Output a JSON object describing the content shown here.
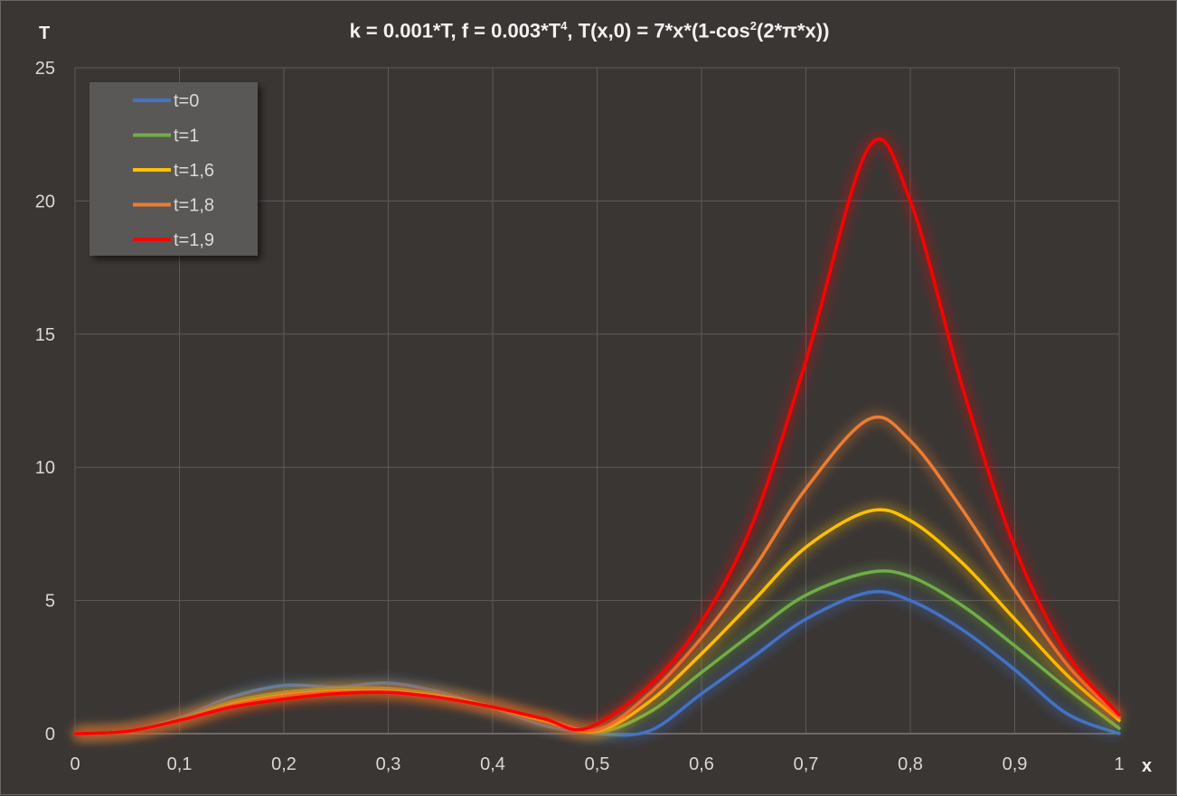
{
  "chart_data": {
    "type": "line",
    "title_parts": [
      "k = 0.001*T, f = 0.003*T",
      "4",
      ",  T(x,0) = 7*x*(1-cos",
      "2",
      "(2*π*x))"
    ],
    "xlabel": "x",
    "ylabel": "T",
    "xlim": [
      0,
      1
    ],
    "ylim": [
      0,
      25
    ],
    "x_ticks": [
      "0",
      "0,1",
      "0,2",
      "0,3",
      "0,4",
      "0,5",
      "0,6",
      "0,7",
      "0,8",
      "0,9",
      "1"
    ],
    "y_ticks": [
      "0",
      "5",
      "10",
      "15",
      "20",
      "25"
    ],
    "grid": true,
    "legend_position": "top-left",
    "series": [
      {
        "name": "t=0",
        "color": "#4472c4",
        "points": [
          [
            0,
            0
          ],
          [
            0.05,
            0.09
          ],
          [
            0.1,
            0.6
          ],
          [
            0.15,
            1.38
          ],
          [
            0.2,
            1.81
          ],
          [
            0.25,
            1.75
          ],
          [
            0.3,
            1.9
          ],
          [
            0.35,
            1.55
          ],
          [
            0.4,
            0.97
          ],
          [
            0.45,
            0.3
          ],
          [
            0.5,
            0
          ],
          [
            0.55,
            0.1
          ],
          [
            0.6,
            1.5
          ],
          [
            0.65,
            2.9
          ],
          [
            0.7,
            4.3
          ],
          [
            0.76,
            5.3
          ],
          [
            0.8,
            5.0
          ],
          [
            0.85,
            3.9
          ],
          [
            0.9,
            2.4
          ],
          [
            0.95,
            0.75
          ],
          [
            1,
            0
          ]
        ]
      },
      {
        "name": "t=1",
        "color": "#70ad47",
        "points": [
          [
            0,
            0
          ],
          [
            0.05,
            0.09
          ],
          [
            0.1,
            0.55
          ],
          [
            0.15,
            1.2
          ],
          [
            0.2,
            1.55
          ],
          [
            0.25,
            1.7
          ],
          [
            0.3,
            1.7
          ],
          [
            0.35,
            1.45
          ],
          [
            0.4,
            1.0
          ],
          [
            0.45,
            0.45
          ],
          [
            0.5,
            0.05
          ],
          [
            0.55,
            0.8
          ],
          [
            0.6,
            2.3
          ],
          [
            0.65,
            3.8
          ],
          [
            0.7,
            5.2
          ],
          [
            0.76,
            6.05
          ],
          [
            0.8,
            5.9
          ],
          [
            0.85,
            4.8
          ],
          [
            0.9,
            3.3
          ],
          [
            0.95,
            1.7
          ],
          [
            1,
            0.2
          ]
        ]
      },
      {
        "name": "t=1,6",
        "color": "#ffc000",
        "points": [
          [
            0,
            0
          ],
          [
            0.05,
            0.09
          ],
          [
            0.1,
            0.5
          ],
          [
            0.15,
            1.1
          ],
          [
            0.2,
            1.45
          ],
          [
            0.25,
            1.6
          ],
          [
            0.3,
            1.6
          ],
          [
            0.35,
            1.4
          ],
          [
            0.4,
            1.0
          ],
          [
            0.45,
            0.5
          ],
          [
            0.5,
            0.1
          ],
          [
            0.55,
            1.2
          ],
          [
            0.6,
            3.0
          ],
          [
            0.65,
            5.0
          ],
          [
            0.7,
            7.0
          ],
          [
            0.76,
            8.35
          ],
          [
            0.8,
            8.0
          ],
          [
            0.85,
            6.4
          ],
          [
            0.9,
            4.3
          ],
          [
            0.95,
            2.2
          ],
          [
            1,
            0.5
          ]
        ]
      },
      {
        "name": "t=1,8",
        "color": "#ed7d31",
        "points": [
          [
            0,
            0
          ],
          [
            0.05,
            0.09
          ],
          [
            0.1,
            0.5
          ],
          [
            0.15,
            1.05
          ],
          [
            0.2,
            1.4
          ],
          [
            0.25,
            1.55
          ],
          [
            0.3,
            1.55
          ],
          [
            0.35,
            1.35
          ],
          [
            0.4,
            1.0
          ],
          [
            0.45,
            0.55
          ],
          [
            0.5,
            0.15
          ],
          [
            0.55,
            1.5
          ],
          [
            0.6,
            3.6
          ],
          [
            0.65,
            6.2
          ],
          [
            0.7,
            9.2
          ],
          [
            0.76,
            11.8
          ],
          [
            0.8,
            11.0
          ],
          [
            0.85,
            8.4
          ],
          [
            0.9,
            5.4
          ],
          [
            0.95,
            2.6
          ],
          [
            1,
            0.6
          ]
        ]
      },
      {
        "name": "t=1,9",
        "color": "#ff0000",
        "points": [
          [
            0,
            0
          ],
          [
            0.05,
            0.09
          ],
          [
            0.1,
            0.5
          ],
          [
            0.15,
            1.0
          ],
          [
            0.2,
            1.3
          ],
          [
            0.25,
            1.5
          ],
          [
            0.3,
            1.55
          ],
          [
            0.35,
            1.35
          ],
          [
            0.4,
            1.0
          ],
          [
            0.45,
            0.55
          ],
          [
            0.49,
            0.2
          ],
          [
            0.55,
            1.8
          ],
          [
            0.6,
            4.2
          ],
          [
            0.65,
            8.0
          ],
          [
            0.7,
            14.0
          ],
          [
            0.76,
            22.0
          ],
          [
            0.8,
            20.0
          ],
          [
            0.85,
            13.0
          ],
          [
            0.9,
            7.0
          ],
          [
            0.95,
            3.0
          ],
          [
            1,
            0.7
          ]
        ]
      }
    ]
  }
}
